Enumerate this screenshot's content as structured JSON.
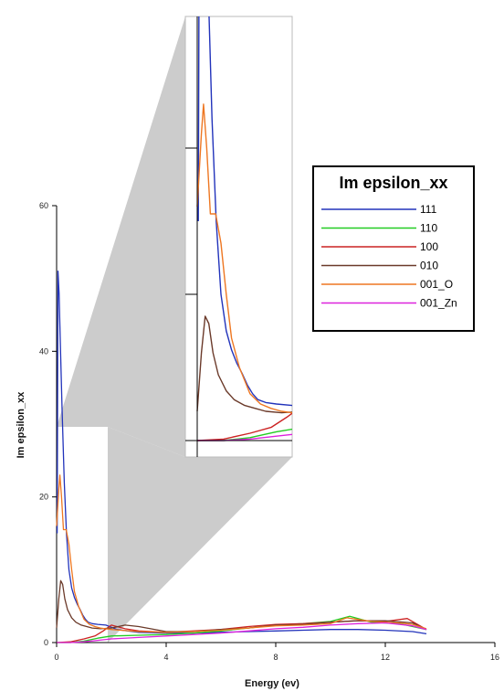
{
  "chart_data": {
    "type": "line",
    "title": "",
    "xlabel": "Energy (ev)",
    "ylabel": "Im epsilon_xx",
    "xlim": [
      0,
      16
    ],
    "ylim": [
      0,
      60
    ],
    "x_ticks": [
      "0",
      "4",
      "8",
      "12",
      "16"
    ],
    "y_ticks": [
      "0",
      "20",
      "40",
      "60"
    ],
    "grid": false,
    "legend": {
      "title": "Im epsilon_xx",
      "placement": "top-right"
    },
    "inset": {
      "xlim": [
        0,
        1.8
      ],
      "ylim": [
        0,
        29
      ],
      "shows": "zoom of low-energy region"
    },
    "series": [
      {
        "name": "111",
        "color": "#2233bb",
        "points": [
          [
            0.02,
            15
          ],
          [
            0.05,
            51
          ],
          [
            0.09,
            48
          ],
          [
            0.13,
            42
          ],
          [
            0.2,
            32
          ],
          [
            0.28,
            22
          ],
          [
            0.36,
            15
          ],
          [
            0.45,
            10
          ],
          [
            0.55,
            7.5
          ],
          [
            0.65,
            6.2
          ],
          [
            0.75,
            5.3
          ],
          [
            0.85,
            4.6
          ],
          [
            0.95,
            3.8
          ],
          [
            1.05,
            3.2
          ],
          [
            1.15,
            2.8
          ],
          [
            1.3,
            2.6
          ],
          [
            1.5,
            2.5
          ],
          [
            1.8,
            2.4
          ],
          [
            2.2,
            1.8
          ],
          [
            3,
            1.4
          ],
          [
            4,
            1.3
          ],
          [
            5,
            1.3
          ],
          [
            6,
            1.4
          ],
          [
            7,
            1.5
          ],
          [
            8,
            1.6
          ],
          [
            9,
            1.7
          ],
          [
            10,
            1.8
          ],
          [
            11,
            1.8
          ],
          [
            12,
            1.7
          ],
          [
            13,
            1.5
          ],
          [
            13.5,
            1.2
          ]
        ]
      },
      {
        "name": "110",
        "color": "#22cc22",
        "points": [
          [
            0,
            0
          ],
          [
            0.5,
            0
          ],
          [
            1,
            0.2
          ],
          [
            1.5,
            0.6
          ],
          [
            2,
            0.9
          ],
          [
            3,
            1
          ],
          [
            4,
            1.1
          ],
          [
            5,
            1.3
          ],
          [
            6,
            1.6
          ],
          [
            7,
            2
          ],
          [
            8,
            2.4
          ],
          [
            9,
            2.6
          ],
          [
            10,
            2.9
          ],
          [
            10.7,
            3.6
          ],
          [
            11.5,
            2.8
          ],
          [
            12.5,
            2.6
          ],
          [
            13,
            2.2
          ],
          [
            13.5,
            1.8
          ]
        ]
      },
      {
        "name": "100",
        "color": "#cc2222",
        "points": [
          [
            0,
            0
          ],
          [
            0.5,
            0.1
          ],
          [
            1,
            0.5
          ],
          [
            1.4,
            0.9
          ],
          [
            1.7,
            1.6
          ],
          [
            2,
            2.4
          ],
          [
            2.5,
            1.9
          ],
          [
            3,
            1.6
          ],
          [
            4,
            1.4
          ],
          [
            5,
            1.6
          ],
          [
            6,
            1.8
          ],
          [
            7,
            2.2
          ],
          [
            8,
            2.5
          ],
          [
            9,
            2.6
          ],
          [
            10,
            2.8
          ],
          [
            11,
            3
          ],
          [
            12,
            2.9
          ],
          [
            12.8,
            3.3
          ],
          [
            13.5,
            1.8
          ]
        ]
      },
      {
        "name": "010",
        "color": "#6b3a2a",
        "points": [
          [
            0,
            2
          ],
          [
            0.08,
            6
          ],
          [
            0.15,
            8.5
          ],
          [
            0.22,
            8
          ],
          [
            0.3,
            6
          ],
          [
            0.4,
            4.5
          ],
          [
            0.55,
            3.4
          ],
          [
            0.7,
            2.8
          ],
          [
            0.9,
            2.4
          ],
          [
            1.1,
            2.2
          ],
          [
            1.3,
            2
          ],
          [
            1.6,
            1.9
          ],
          [
            2,
            2
          ],
          [
            2.5,
            2.4
          ],
          [
            3,
            2.2
          ],
          [
            4,
            1.5
          ],
          [
            5,
            1.5
          ],
          [
            6,
            1.8
          ],
          [
            7,
            2
          ],
          [
            8,
            2.4
          ],
          [
            9,
            2.5
          ],
          [
            10,
            2.8
          ],
          [
            11,
            3
          ],
          [
            12,
            3
          ],
          [
            13,
            2.7
          ],
          [
            13.5,
            1.8
          ]
        ]
      },
      {
        "name": "001_O",
        "color": "#ee7722",
        "points": [
          [
            0,
            16
          ],
          [
            0.08,
            21
          ],
          [
            0.12,
            23
          ],
          [
            0.18,
            20
          ],
          [
            0.25,
            15.5
          ],
          [
            0.35,
            15.5
          ],
          [
            0.45,
            13.5
          ],
          [
            0.55,
            10
          ],
          [
            0.65,
            7
          ],
          [
            0.8,
            5
          ],
          [
            1,
            3.2
          ],
          [
            1.2,
            2.5
          ],
          [
            1.4,
            2.2
          ],
          [
            1.6,
            2
          ],
          [
            2,
            1.8
          ],
          [
            3,
            1.5
          ],
          [
            4,
            1.4
          ],
          [
            5,
            1.5
          ],
          [
            6,
            1.7
          ],
          [
            7,
            2
          ],
          [
            8,
            2.3
          ],
          [
            9,
            2.4
          ],
          [
            10,
            2.6
          ],
          [
            10.6,
            3.4
          ],
          [
            11.5,
            2.9
          ],
          [
            12.5,
            2.7
          ],
          [
            13,
            2.5
          ],
          [
            13.5,
            1.9
          ]
        ]
      },
      {
        "name": "001_Zn",
        "color": "#dd22dd",
        "points": [
          [
            0,
            0
          ],
          [
            0.5,
            0
          ],
          [
            1,
            0.1
          ],
          [
            1.5,
            0.3
          ],
          [
            2,
            0.5
          ],
          [
            3,
            0.7
          ],
          [
            4,
            0.9
          ],
          [
            5,
            1.1
          ],
          [
            6,
            1.3
          ],
          [
            7,
            1.6
          ],
          [
            8,
            1.9
          ],
          [
            9,
            2.1
          ],
          [
            10,
            2.4
          ],
          [
            11,
            2.6
          ],
          [
            12,
            2.7
          ],
          [
            13,
            2.3
          ],
          [
            13.5,
            1.8
          ]
        ]
      }
    ]
  }
}
